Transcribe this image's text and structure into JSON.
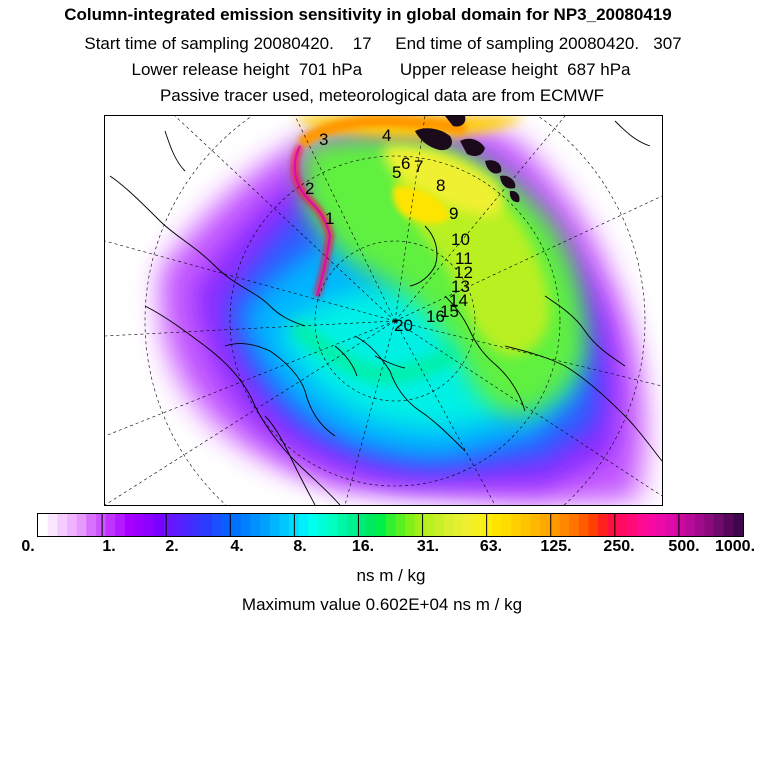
{
  "header": {
    "title": "Column-integrated emission sensitivity in global domain for NP3_20080419",
    "sampling": "Start time of sampling 20080420.    17     End time of sampling 20080420.   307",
    "release": "Lower release height  701 hPa        Upper release height  687 hPa",
    "note": "Passive tracer used, meteorological data are from ECMWF"
  },
  "trajectory_labels": [
    "1",
    "2",
    "3",
    "4",
    "5",
    "6",
    "7",
    "8",
    "9",
    "10",
    "11",
    "12",
    "13",
    "14",
    "15",
    "16",
    "20"
  ],
  "colorbar": {
    "tick_labels": [
      "0.",
      "1.",
      "2.",
      "4.",
      "8.",
      "16.",
      "31.",
      "63.",
      "125.",
      "250.",
      "500.",
      "1000."
    ],
    "colors": [
      "#ffffff",
      "#fbe6ff",
      "#f5ccff",
      "#efb3ff",
      "#e699ff",
      "#d970ff",
      "#cc55ff",
      "#bf33ff",
      "#b31aff",
      "#a600ff",
      "#9900ff",
      "#8c00ff",
      "#7a00ff",
      "#6a14ff",
      "#5a1eff",
      "#4a28ff",
      "#3a32ff",
      "#2a3cff",
      "#1a50ff",
      "#0a60ff",
      "#0070ff",
      "#0080ff",
      "#0090ff",
      "#00a0ff",
      "#00b4ff",
      "#00c8ff",
      "#00dcff",
      "#00f0ff",
      "#00ffee",
      "#00ffd8",
      "#00ffc0",
      "#00f7a8",
      "#00f090",
      "#00ea78",
      "#00e860",
      "#00ee48",
      "#30f030",
      "#58f020",
      "#80f018",
      "#a0f018",
      "#b8f020",
      "#c8f028",
      "#d8f030",
      "#e4f030",
      "#f0f030",
      "#f6f020",
      "#fcec10",
      "#ffe400",
      "#ffdc00",
      "#ffd000",
      "#ffc400",
      "#ffb800",
      "#ffa800",
      "#ff9800",
      "#ff8800",
      "#ff7400",
      "#ff5c00",
      "#ff4000",
      "#ff2020",
      "#ff1040",
      "#ff0a60",
      "#ff0a78",
      "#ff0a90",
      "#f80aa0",
      "#ee0aa8",
      "#e00aa8",
      "#cc0aa0",
      "#b80a98",
      "#a00a8c",
      "#880a7c",
      "#700a6c",
      "#58085c",
      "#40064c"
    ]
  },
  "units": "ns m / kg",
  "max_value": "Maximum value  0.602E+04 ns m / kg"
}
